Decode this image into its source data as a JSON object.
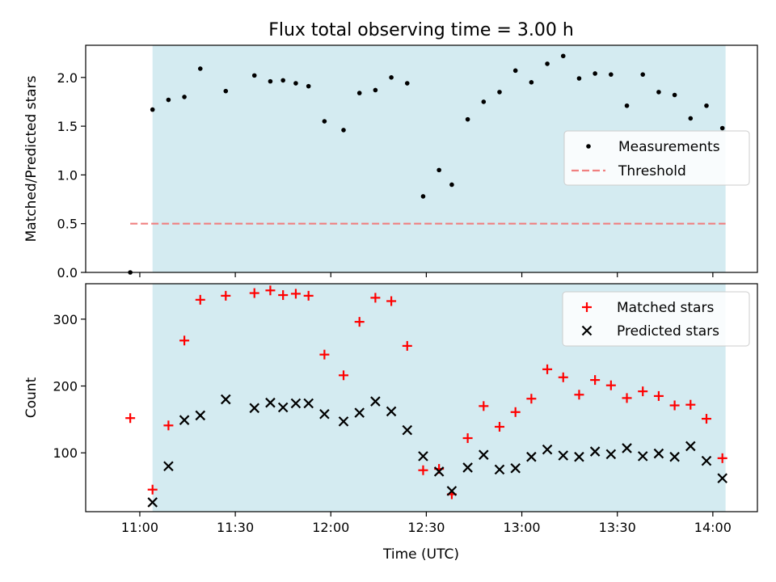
{
  "figure": {
    "title": "Flux total observing time = 3.00 h",
    "xlabel": "Time (UTC)",
    "x_ticks": [
      "11:00",
      "11:30",
      "12:00",
      "12:30",
      "13:00",
      "13:30",
      "14:00"
    ]
  },
  "colors": {
    "shade": "#d4ebf1",
    "measurement": "#000000",
    "threshold": "#f08080",
    "matched": "#ff0000",
    "predicted": "#000000"
  },
  "chart_data": [
    {
      "type": "scatter",
      "ylabel": "Matched/Predicted stars",
      "ylim": [
        0,
        2.33
      ],
      "yticks": [
        "0.0",
        "0.5",
        "1.0",
        "1.5",
        "2.0"
      ],
      "x_range": [
        "10:43",
        "14:14"
      ],
      "shaded_interval": [
        "11:04",
        "14:04"
      ],
      "legend_position": "center-right",
      "threshold": {
        "name": "Threshold",
        "value": 0.5,
        "x": [
          "10:57",
          "14:04"
        ]
      },
      "series": [
        {
          "name": "Measurements",
          "x": [
            "10:57",
            "11:04",
            "11:09",
            "11:14",
            "11:19",
            "11:27",
            "11:36",
            "11:41",
            "11:45",
            "11:49",
            "11:53",
            "11:58",
            "12:04",
            "12:09",
            "12:14",
            "12:19",
            "12:24",
            "12:29",
            "12:34",
            "12:38",
            "12:43",
            "12:48",
            "12:53",
            "12:58",
            "13:03",
            "13:08",
            "13:13",
            "13:18",
            "13:23",
            "13:28",
            "13:33",
            "13:38",
            "13:43",
            "13:48",
            "13:53",
            "13:58",
            "14:03"
          ],
          "y": [
            0.0,
            1.67,
            1.77,
            1.8,
            2.09,
            1.86,
            2.02,
            1.96,
            1.97,
            1.94,
            1.91,
            1.55,
            1.46,
            1.84,
            1.87,
            2.0,
            1.94,
            0.78,
            1.05,
            0.9,
            1.57,
            1.75,
            1.85,
            2.07,
            1.95,
            2.14,
            2.22,
            1.99,
            2.04,
            2.03,
            1.71,
            2.03,
            1.85,
            1.82,
            1.58,
            1.71,
            1.48
          ]
        }
      ]
    },
    {
      "type": "scatter",
      "ylabel": "Count",
      "ylim": [
        12,
        353
      ],
      "yticks": [
        "100",
        "200",
        "300"
      ],
      "x_range": [
        "10:43",
        "14:14"
      ],
      "shaded_interval": [
        "11:04",
        "14:04"
      ],
      "legend_position": "top-right",
      "series": [
        {
          "name": "Matched stars",
          "marker": "plus",
          "x": [
            "10:57",
            "11:04",
            "11:09",
            "11:14",
            "11:19",
            "11:27",
            "11:36",
            "11:41",
            "11:45",
            "11:49",
            "11:53",
            "11:58",
            "12:04",
            "12:09",
            "12:14",
            "12:19",
            "12:24",
            "12:29",
            "12:34",
            "12:38",
            "12:43",
            "12:48",
            "12:53",
            "12:58",
            "13:03",
            "13:08",
            "13:13",
            "13:18",
            "13:23",
            "13:28",
            "13:33",
            "13:38",
            "13:43",
            "13:48",
            "13:53",
            "13:58",
            "14:03"
          ],
          "y": [
            152,
            45,
            141,
            268,
            329,
            335,
            339,
            343,
            336,
            338,
            335,
            247,
            216,
            296,
            332,
            327,
            260,
            74,
            76,
            38,
            122,
            170,
            139,
            161,
            181,
            225,
            213,
            187,
            209,
            201,
            182,
            192,
            185,
            171,
            172,
            151,
            92
          ]
        },
        {
          "name": "Predicted stars",
          "marker": "x",
          "x": [
            "11:04",
            "11:09",
            "11:14",
            "11:19",
            "11:27",
            "11:36",
            "11:41",
            "11:45",
            "11:49",
            "11:53",
            "11:58",
            "12:04",
            "12:09",
            "12:14",
            "12:19",
            "12:24",
            "12:29",
            "12:34",
            "12:38",
            "12:43",
            "12:48",
            "12:53",
            "12:58",
            "13:03",
            "13:08",
            "13:13",
            "13:18",
            "13:23",
            "13:28",
            "13:33",
            "13:38",
            "13:43",
            "13:48",
            "13:53",
            "13:58",
            "14:03"
          ],
          "y": [
            26,
            80,
            149,
            156,
            180,
            167,
            175,
            168,
            174,
            174,
            158,
            147,
            160,
            177,
            162,
            134,
            95,
            72,
            43,
            78,
            97,
            75,
            77,
            94,
            105,
            96,
            94,
            102,
            98,
            107,
            95,
            99,
            94,
            110,
            88,
            62
          ]
        }
      ]
    }
  ]
}
